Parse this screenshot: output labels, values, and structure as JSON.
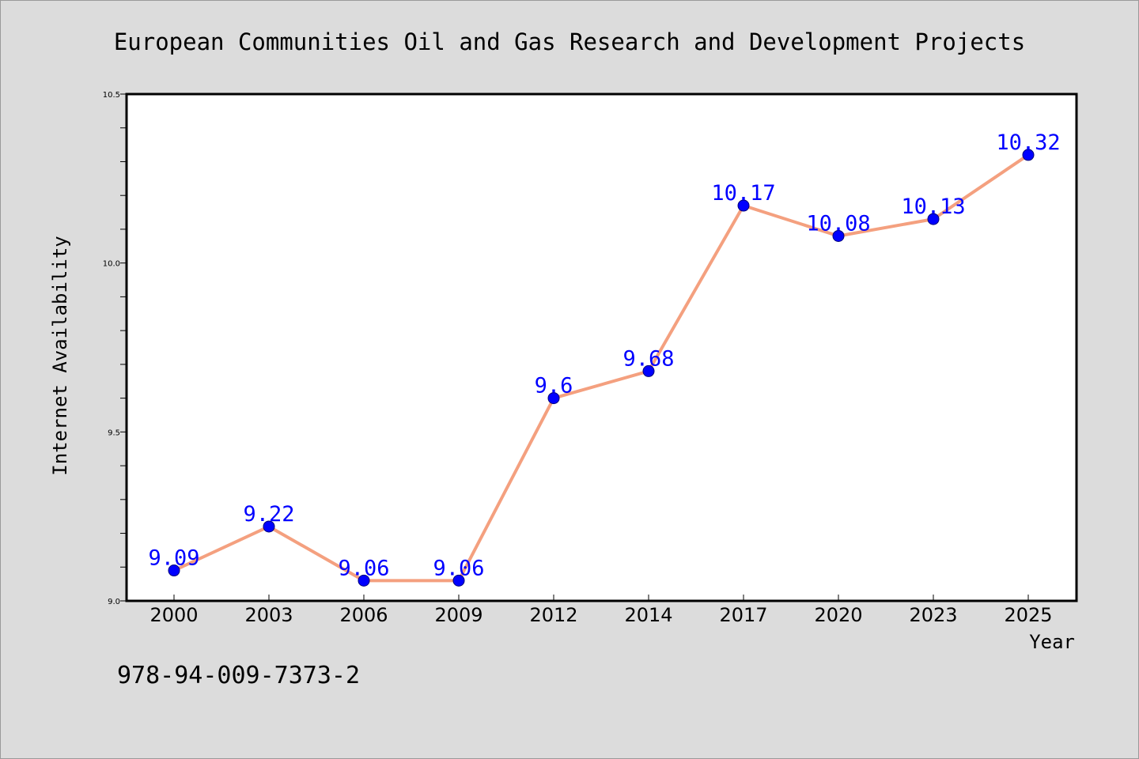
{
  "chart_data": {
    "type": "line",
    "title": "European Communities Oil and Gas Research and Development Projects",
    "xlabel": "Year",
    "ylabel": "Internet Availability",
    "categories": [
      "2000",
      "2003",
      "2006",
      "2009",
      "2012",
      "2014",
      "2017",
      "2020",
      "2023",
      "2025"
    ],
    "series": [
      {
        "values": [
          9.09,
          9.22,
          9.06,
          9.06,
          9.6,
          9.68,
          10.17,
          10.08,
          10.13,
          10.32
        ],
        "line_color": "#f4a07f",
        "marker_color": "#0000ff",
        "label_color": "#0000ff"
      }
    ],
    "data_labels": [
      "9.09",
      "9.22",
      "9.06",
      "9.06",
      "9.6",
      "9.68",
      "10.17",
      "10.08",
      "10.13",
      "10.32"
    ],
    "ylim": [
      9.0,
      10.5
    ],
    "yticks": [
      9.0,
      9.5,
      10.0,
      10.5
    ],
    "ytick_labels": [
      "9.0",
      "9.5",
      "10.0",
      "10.5"
    ],
    "grid": false,
    "legend": "none"
  },
  "footnote": "978-94-009-7373-2",
  "colors": {
    "background": "#dcdcdc",
    "plot_background": "#ffffff"
  }
}
